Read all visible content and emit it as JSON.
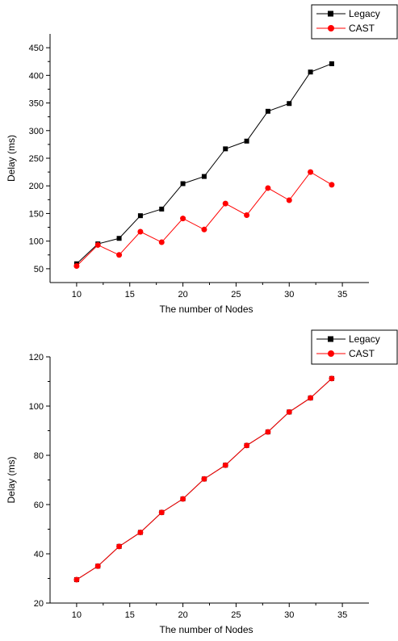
{
  "chart_data": [
    {
      "type": "line",
      "xlabel": "The number of Nodes",
      "ylabel": "Delay (ms)",
      "xlim": [
        7.5,
        37.5
      ],
      "ylim": [
        25,
        475
      ],
      "xticks": [
        10,
        15,
        20,
        25,
        30,
        35
      ],
      "yticks": [
        50,
        100,
        150,
        200,
        250,
        300,
        350,
        400,
        450
      ],
      "grid": false,
      "legend": "top-right",
      "x": [
        10,
        12,
        14,
        16,
        18,
        20,
        22,
        24,
        26,
        28,
        30,
        32,
        34
      ],
      "series": [
        {
          "name": "Legacy",
          "color": "#000000",
          "marker": "square",
          "values": [
            59,
            95,
            105,
            146,
            158,
            204,
            217,
            267,
            281,
            335,
            349,
            406,
            421
          ]
        },
        {
          "name": "CAST",
          "color": "#ff0000",
          "marker": "circle",
          "values": [
            55,
            93,
            75,
            117,
            98,
            141,
            121,
            168,
            147,
            196,
            174,
            225,
            202
          ]
        }
      ]
    },
    {
      "type": "line",
      "xlabel": "The number of Nodes",
      "ylabel": "Delay (ms)",
      "xlim": [
        7.5,
        37.5
      ],
      "ylim": [
        20,
        120
      ],
      "xticks": [
        10,
        15,
        20,
        25,
        30,
        35
      ],
      "yticks": [
        20,
        40,
        60,
        80,
        100,
        120
      ],
      "grid": false,
      "legend": "top-right",
      "x": [
        10,
        12,
        14,
        16,
        18,
        20,
        22,
        24,
        26,
        28,
        30,
        32,
        34
      ],
      "series": [
        {
          "name": "Legacy",
          "color": "#000000",
          "marker": "square",
          "values": [
            29.5,
            35,
            43,
            48.7,
            56.8,
            62.3,
            70.4,
            76,
            84,
            89.5,
            97.6,
            103.3,
            111.2
          ]
        },
        {
          "name": "CAST",
          "color": "#ff0000",
          "marker": "circle",
          "values": [
            29.5,
            35,
            43,
            48.7,
            56.8,
            62.3,
            70.4,
            76,
            84,
            89.5,
            97.6,
            103.3,
            111.2
          ]
        }
      ]
    }
  ]
}
